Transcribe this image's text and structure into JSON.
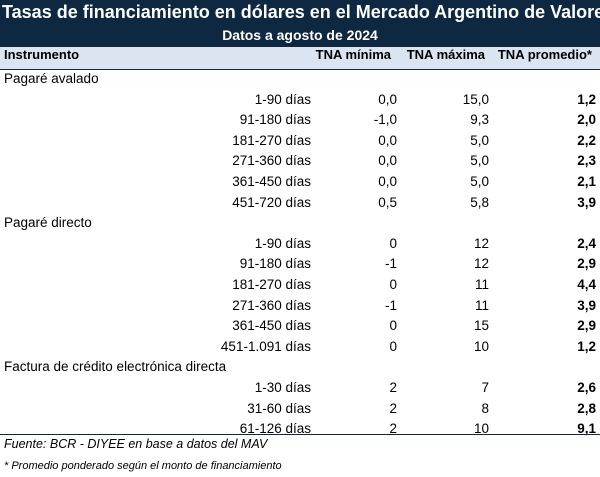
{
  "title": "Tasas de financiamiento en dólares en el Mercado Argentino de Valores",
  "subtitle": "Datos a agosto de 2024",
  "columns": {
    "instrument": "Instrumento",
    "min": "TNA mínima",
    "max": "TNA máxima",
    "avg": "TNA promedio*"
  },
  "groups": [
    {
      "name": "Pagaré avalado",
      "rows": [
        {
          "term": "1-90 días",
          "min": "0,0",
          "max": "15,0",
          "avg": "1,2"
        },
        {
          "term": "91-180 días",
          "min": "-1,0",
          "max": "9,3",
          "avg": "2,0"
        },
        {
          "term": "181-270 días",
          "min": "0,0",
          "max": "5,0",
          "avg": "2,2"
        },
        {
          "term": "271-360 días",
          "min": "0,0",
          "max": "5,0",
          "avg": "2,3"
        },
        {
          "term": "361-450 días",
          "min": "0,0",
          "max": "5,0",
          "avg": "2,1"
        },
        {
          "term": "451-720 días",
          "min": "0,5",
          "max": "5,8",
          "avg": "3,9"
        }
      ]
    },
    {
      "name": "Pagaré directo",
      "rows": [
        {
          "term": "1-90 días",
          "min": "0",
          "max": "12",
          "avg": "2,4"
        },
        {
          "term": "91-180 días",
          "min": "-1",
          "max": "12",
          "avg": "2,9"
        },
        {
          "term": "181-270 días",
          "min": "0",
          "max": "11",
          "avg": "4,4"
        },
        {
          "term": "271-360 días",
          "min": "-1",
          "max": "11",
          "avg": "3,9"
        },
        {
          "term": "361-450 días",
          "min": "0",
          "max": "15",
          "avg": "2,9"
        },
        {
          "term": "451-1.091 días",
          "min": "0",
          "max": "10",
          "avg": "1,2"
        }
      ]
    },
    {
      "name": "Factura de crédito electrónica directa",
      "rows": [
        {
          "term": "1-30 días",
          "min": "2",
          "max": "7",
          "avg": "2,6"
        },
        {
          "term": "31-60 días",
          "min": "2",
          "max": "8",
          "avg": "2,8"
        },
        {
          "term": "61-126 días",
          "min": "2",
          "max": "10",
          "avg": "9,1"
        }
      ]
    }
  ],
  "source": "Fuente: BCR - DIYEE en base a datos del MAV",
  "note": "* Promedio ponderado según el monto de financiamiento",
  "colors": {
    "header_bg": "#0e2841",
    "column_header_bg": "#dbe5f1"
  }
}
